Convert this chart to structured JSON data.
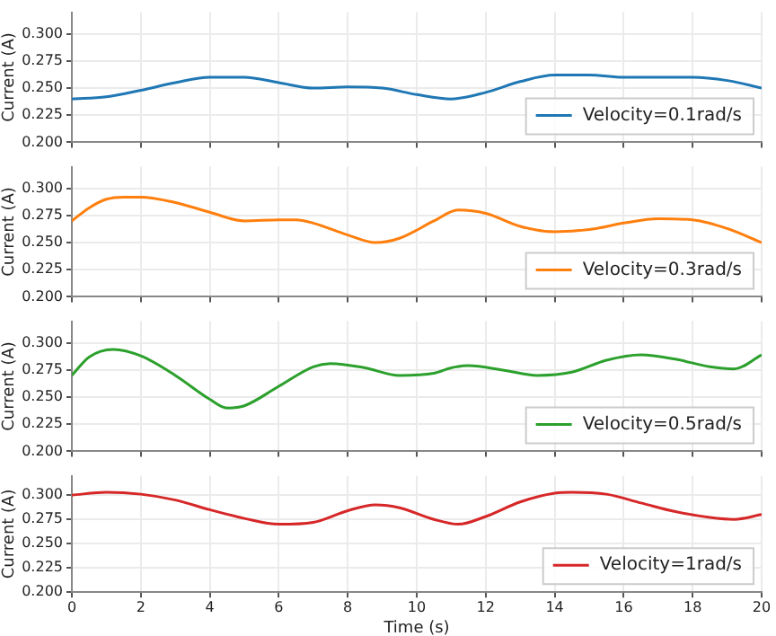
{
  "chart_data": [
    {
      "type": "line",
      "ylabel": "Current (A)",
      "xlim": [
        0,
        20
      ],
      "xticks": [
        0,
        2,
        4,
        6,
        8,
        10,
        12,
        14,
        16,
        18,
        20
      ],
      "ylim": [
        0.2,
        0.32
      ],
      "yticks": [
        {
          "value": 0.2,
          "label": "0.200"
        },
        {
          "value": 0.225,
          "label": "0.225"
        },
        {
          "value": 0.25,
          "label": "0.250"
        },
        {
          "value": 0.275,
          "label": "0.275"
        },
        {
          "value": 0.3,
          "label": "0.300"
        }
      ],
      "grid": true,
      "legend": "bottom right",
      "tick_labels": "y",
      "marker": "none",
      "line_style": "solid",
      "x": [
        0,
        1,
        2,
        3,
        4,
        5,
        6,
        7,
        8,
        9,
        10,
        11,
        12,
        13,
        14,
        15,
        16,
        17,
        18,
        19,
        20
      ],
      "series": [
        {
          "name": "Velocity=0.1rad/s",
          "color": "#1f77b4",
          "values": [
            0.24,
            0.242,
            0.248,
            0.255,
            0.26,
            0.26,
            0.255,
            0.25,
            0.251,
            0.25,
            0.244,
            0.24,
            0.246,
            0.256,
            0.262,
            0.262,
            0.26,
            0.26,
            0.26,
            0.257,
            0.25
          ]
        }
      ]
    },
    {
      "type": "line",
      "ylabel": "Current (A)",
      "xlim": [
        0,
        20
      ],
      "xticks": [
        0,
        2,
        4,
        6,
        8,
        10,
        12,
        14,
        16,
        18,
        20
      ],
      "ylim": [
        0.2,
        0.32
      ],
      "yticks": [
        {
          "value": 0.2,
          "label": "0.200"
        },
        {
          "value": 0.225,
          "label": "0.225"
        },
        {
          "value": 0.25,
          "label": "0.250"
        },
        {
          "value": 0.275,
          "label": "0.275"
        },
        {
          "value": 0.3,
          "label": "0.300"
        }
      ],
      "grid": true,
      "legend": "bottom right",
      "tick_labels": "y",
      "marker": "none",
      "line_style": "solid",
      "x": [
        0,
        0.5,
        1,
        1.5,
        2,
        3,
        4,
        5,
        6,
        6.5,
        7,
        8,
        8.8,
        9.5,
        10.5,
        11.2,
        12,
        13,
        14,
        15,
        16,
        17,
        18,
        19,
        20
      ],
      "series": [
        {
          "name": "Velocity=0.3rad/s",
          "color": "#ff7f0e",
          "values": [
            0.27,
            0.282,
            0.29,
            0.292,
            0.292,
            0.287,
            0.278,
            0.27,
            0.271,
            0.271,
            0.268,
            0.257,
            0.25,
            0.254,
            0.27,
            0.28,
            0.277,
            0.265,
            0.26,
            0.262,
            0.268,
            0.272,
            0.271,
            0.263,
            0.25
          ]
        }
      ]
    },
    {
      "type": "line",
      "ylabel": "Current (A)",
      "xlim": [
        0,
        20
      ],
      "xticks": [
        0,
        2,
        4,
        6,
        8,
        10,
        12,
        14,
        16,
        18,
        20
      ],
      "ylim": [
        0.2,
        0.32
      ],
      "yticks": [
        {
          "value": 0.2,
          "label": "0.200"
        },
        {
          "value": 0.225,
          "label": "0.225"
        },
        {
          "value": 0.25,
          "label": "0.250"
        },
        {
          "value": 0.275,
          "label": "0.275"
        },
        {
          "value": 0.3,
          "label": "0.300"
        }
      ],
      "grid": true,
      "legend": "bottom right",
      "tick_labels": "y",
      "marker": "none",
      "line_style": "solid",
      "x": [
        0,
        0.5,
        1.2,
        2,
        3,
        4,
        4.5,
        5,
        6,
        7,
        7.5,
        8.5,
        9.5,
        10.5,
        11,
        11.5,
        12.5,
        13.5,
        14.5,
        15.5,
        16.5,
        17.5,
        18.5,
        19.2,
        20
      ],
      "series": [
        {
          "name": "Velocity=0.5rad/s",
          "color": "#2ca02c",
          "values": [
            0.27,
            0.287,
            0.294,
            0.288,
            0.27,
            0.248,
            0.24,
            0.242,
            0.26,
            0.278,
            0.281,
            0.277,
            0.27,
            0.272,
            0.277,
            0.279,
            0.275,
            0.27,
            0.273,
            0.284,
            0.289,
            0.285,
            0.278,
            0.276,
            0.289
          ]
        }
      ]
    },
    {
      "type": "line",
      "xlabel": "Time (s)",
      "ylabel": "Current (A)",
      "xlim": [
        0,
        20
      ],
      "xticks": [
        0,
        2,
        4,
        6,
        8,
        10,
        12,
        14,
        16,
        18,
        20
      ],
      "ylim": [
        0.2,
        0.32
      ],
      "yticks": [
        {
          "value": 0.2,
          "label": "0.200"
        },
        {
          "value": 0.225,
          "label": "0.225"
        },
        {
          "value": 0.25,
          "label": "0.250"
        },
        {
          "value": 0.275,
          "label": "0.275"
        },
        {
          "value": 0.3,
          "label": "0.300"
        }
      ],
      "grid": true,
      "legend": "bottom right",
      "marker": "none",
      "line_style": "solid",
      "x": [
        0,
        1,
        2,
        3,
        4,
        5,
        6,
        7,
        8,
        8.8,
        9.5,
        10.5,
        11.2,
        12,
        13,
        14,
        14.5,
        15.5,
        16.5,
        17.5,
        18.5,
        19.2,
        20
      ],
      "series": [
        {
          "name": "Velocity=1rad/s",
          "color": "#d62728",
          "values": [
            0.3,
            0.303,
            0.301,
            0.295,
            0.285,
            0.276,
            0.27,
            0.272,
            0.284,
            0.29,
            0.287,
            0.275,
            0.27,
            0.278,
            0.293,
            0.302,
            0.303,
            0.301,
            0.292,
            0.283,
            0.277,
            0.275,
            0.28
          ]
        }
      ]
    }
  ]
}
